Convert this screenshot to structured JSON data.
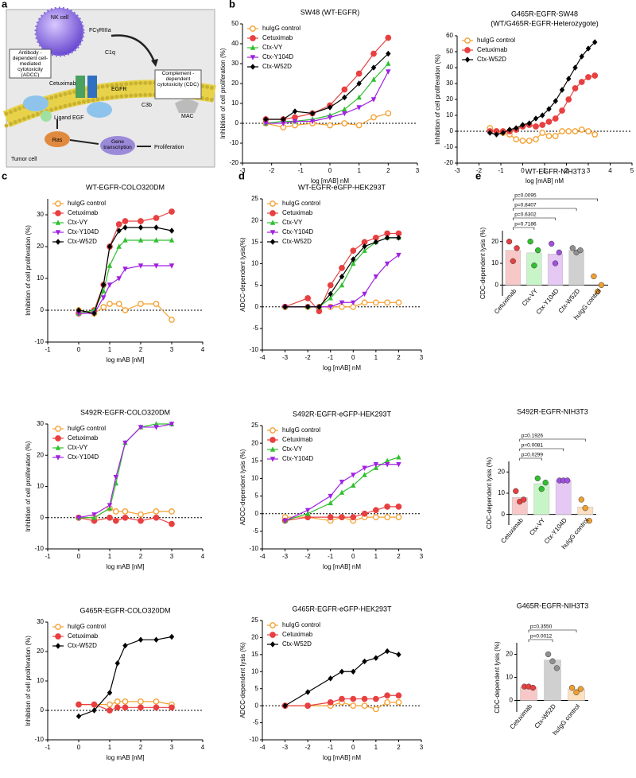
{
  "panel_labels": [
    "a",
    "b",
    "c",
    "d",
    "e"
  ],
  "diagram": {
    "nk_cell": "NK cell",
    "receptor": "FCγRIIIa",
    "c1q": "C1q",
    "adcc": "Antibody -dependent cell-mediated cytotoxicity (ADCC)",
    "cetuximab": "Cetuximab",
    "egfr": "EGFR",
    "cdc": "Complement -dependent cytotoxicity (CDC)",
    "ligand": "Ligand EGF",
    "c3b": "C3b",
    "mac": "MAC",
    "ras": "Ras",
    "gene": "Gene transcription",
    "proliferation": "Proliferation",
    "tumor": "Tumor cell"
  },
  "chart_data": [
    {
      "type": "line",
      "title": "SW48 (WT-EGFR)",
      "xlabel": "log [mAB] nM",
      "ylabel": "Inhibition of cell proliferation (%)",
      "xlim": [
        -3,
        3
      ],
      "xticks": [
        -3,
        -2,
        -1,
        0,
        1,
        2,
        3
      ],
      "ylim": [
        -20,
        50
      ],
      "yticks": [
        -20,
        -10,
        0,
        10,
        20,
        30,
        40,
        50
      ],
      "x": [
        -2.2,
        -1.6,
        -1.2,
        -0.6,
        0,
        0.5,
        1,
        1.5,
        2
      ],
      "series": [
        {
          "name": "huIgG control",
          "color": "#f5a030",
          "marker": "circle-open",
          "values": [
            0,
            -2,
            -1,
            0,
            -1,
            0,
            -1,
            3,
            5
          ]
        },
        {
          "name": "Cetuximab",
          "color": "#e84040",
          "marker": "circle",
          "values": [
            2,
            2,
            3,
            5,
            9,
            17,
            25,
            35,
            43
          ]
        },
        {
          "name": "Ctx-VY",
          "color": "#30c030",
          "marker": "triangle",
          "values": [
            0,
            1,
            1,
            2,
            4,
            7,
            13,
            22,
            30
          ]
        },
        {
          "name": "Ctx-Y104D",
          "color": "#a020e0",
          "marker": "triangle-down",
          "values": [
            0,
            0,
            1,
            1,
            3,
            5,
            8,
            12,
            26
          ]
        },
        {
          "name": "Ctx-W52D",
          "color": "#000000",
          "marker": "diamond",
          "values": [
            2,
            2,
            6,
            5,
            8,
            13,
            20,
            28,
            35
          ]
        }
      ]
    },
    {
      "type": "line",
      "title": "G465R-EGFR-SW48",
      "subtitle": "(WT/G465R-EGFR-Heterozygote)",
      "xlabel": "log [mAB] nM",
      "ylabel": "Inhibition of cell proliferation (%)",
      "xlim": [
        -3,
        5
      ],
      "xticks": [
        -3,
        -2,
        -1,
        0,
        1,
        2,
        3,
        4,
        5
      ],
      "ylim": [
        -20,
        60
      ],
      "yticks": [
        -20,
        -10,
        0,
        10,
        20,
        30,
        40,
        50,
        60
      ],
      "x": [
        -1.5,
        -1.2,
        -0.9,
        -0.6,
        -0.3,
        0,
        0.3,
        0.6,
        0.9,
        1.2,
        1.5,
        1.8,
        2.1,
        2.4,
        2.7,
        3.0,
        3.3
      ],
      "series": [
        {
          "name": "huIgG control",
          "color": "#f5a030",
          "marker": "circle-open",
          "values": [
            2,
            0,
            -1,
            -2,
            -5,
            -6,
            -6,
            -5,
            -1,
            -3,
            -3,
            0,
            0,
            0,
            1,
            0,
            -2
          ]
        },
        {
          "name": "Cetuximab",
          "color": "#e84040",
          "marker": "circle",
          "values": [
            0,
            0,
            0,
            0,
            1,
            3,
            4,
            3,
            4,
            6,
            8,
            13,
            20,
            27,
            31,
            34,
            35
          ]
        },
        {
          "name": "Ctx-W52D",
          "color": "#000000",
          "marker": "diamond",
          "values": [
            -1,
            -2,
            -1,
            1,
            2,
            4,
            5,
            8,
            10,
            14,
            19,
            26,
            33,
            40,
            47,
            52,
            56
          ]
        }
      ]
    },
    {
      "type": "line",
      "title": "WT-EGFR-COLO320DM",
      "xlabel": "log mAB [nM]",
      "ylabel": "Inhibition of cell proliferation (%)",
      "xlim": [
        -1,
        4
      ],
      "xticks": [
        -1,
        0,
        1,
        2,
        3,
        4
      ],
      "ylim": [
        -10,
        35
      ],
      "yticks": [
        -10,
        0,
        10,
        20,
        30
      ],
      "x": [
        0,
        0.5,
        0.8,
        1,
        1.3,
        1.5,
        2,
        2.5,
        3
      ],
      "series": [
        {
          "name": "huIgG control",
          "color": "#f5a030",
          "marker": "circle-open",
          "values": [
            0,
            -1,
            1,
            2,
            2,
            0,
            2,
            2,
            -3
          ]
        },
        {
          "name": "Cetuximab",
          "color": "#e84040",
          "marker": "circle",
          "values": [
            -1,
            0,
            8,
            20,
            27,
            28,
            28,
            29,
            31
          ]
        },
        {
          "name": "Ctx-VY",
          "color": "#30c030",
          "marker": "triangle",
          "values": [
            -1,
            0,
            6,
            14,
            20,
            22,
            22,
            22,
            22
          ]
        },
        {
          "name": "Ctx-Y104D",
          "color": "#a020e0",
          "marker": "triangle-down",
          "values": [
            -1,
            -1,
            4,
            8,
            10,
            13,
            14,
            14,
            14
          ]
        },
        {
          "name": "Ctx-W52D",
          "color": "#000000",
          "marker": "diamond",
          "values": [
            0,
            -1,
            8,
            20,
            25,
            26,
            26,
            26,
            25
          ]
        }
      ]
    },
    {
      "type": "line",
      "title": "WT-EGFR-eGFP-HEK293T",
      "xlabel": "log [mAB] nM",
      "ylabel": "ADCC-dependent lysis(%)",
      "xlim": [
        -4,
        3
      ],
      "xticks": [
        -4,
        -3,
        -2,
        -1,
        0,
        1,
        2,
        3
      ],
      "ylim": [
        -10,
        25
      ],
      "yticks": [
        -10,
        -5,
        0,
        5,
        10,
        15,
        20,
        25
      ],
      "x": [
        -3,
        -2,
        -1.5,
        -1,
        -0.5,
        0,
        0.5,
        1,
        1.5,
        2
      ],
      "series": [
        {
          "name": "huIgG control",
          "color": "#f5a030",
          "marker": "circle-open",
          "values": [
            0,
            0,
            0,
            0,
            0,
            0,
            1,
            1,
            1,
            1
          ]
        },
        {
          "name": "Cetuximab",
          "color": "#e84040",
          "marker": "circle",
          "values": [
            0,
            2,
            -1,
            5,
            9,
            13,
            15,
            16,
            17,
            17
          ]
        },
        {
          "name": "Ctx-VY",
          "color": "#30c030",
          "marker": "triangle",
          "values": [
            0,
            0,
            0,
            2,
            5,
            10,
            13,
            15,
            16,
            16
          ]
        },
        {
          "name": "Ctx-Y104D",
          "color": "#a020e0",
          "marker": "triangle-down",
          "values": [
            0,
            0,
            0,
            0,
            1,
            1,
            3,
            7,
            10,
            12
          ]
        },
        {
          "name": "Ctx-W52D",
          "color": "#000000",
          "marker": "diamond",
          "values": [
            0,
            0,
            0,
            3,
            7,
            11,
            14,
            15,
            16,
            16
          ]
        }
      ]
    },
    {
      "type": "bar",
      "title": "WT-EGFR-NIH3T3",
      "ylabel": "CDC-dependent lysis (%)",
      "ylim": [
        -5,
        25
      ],
      "yticks": [
        0,
        10,
        20
      ],
      "categories": [
        "Cetuximab",
        "Ctx-VY",
        "Ctx-Y104D",
        "Ctx-W52D",
        "huIgG control"
      ],
      "values": [
        16,
        14.8,
        14.3,
        16,
        0
      ],
      "colors": [
        "#f8c8c8",
        "#c8f5c8",
        "#e6c8f5",
        "#d0d0d0",
        "#fde0c0"
      ],
      "dot_colors": [
        "#e84040",
        "#30c030",
        "#a050e0",
        "#909090",
        "#f0a030"
      ],
      "points": [
        [
          20,
          11,
          17
        ],
        [
          20,
          9,
          16
        ],
        [
          19,
          10,
          15
        ],
        [
          17,
          15,
          16
        ],
        [
          4,
          -3,
          0
        ]
      ],
      "annotations": [
        "p=0.7186",
        "p=0.6302",
        "p=0.8407",
        "p=0.0095"
      ]
    },
    {
      "type": "line",
      "title": "S492R-EGFR-COLO320DM",
      "xlabel": "log mAB [nM]",
      "ylabel": "Inhibition of cell proliferation (%)",
      "xlim": [
        -1,
        4
      ],
      "xticks": [
        -1,
        0,
        1,
        2,
        3,
        4
      ],
      "ylim": [
        -10,
        30
      ],
      "yticks": [
        -10,
        0,
        10,
        20,
        30
      ],
      "x": [
        0,
        0.5,
        1,
        1.2,
        1.5,
        2,
        2.5,
        3
      ],
      "series": [
        {
          "name": "huIgG control",
          "color": "#f5a030",
          "marker": "circle-open",
          "values": [
            0,
            0,
            3,
            2,
            2,
            1,
            2,
            2
          ]
        },
        {
          "name": "Cetuximab",
          "color": "#e84040",
          "marker": "circle",
          "values": [
            0,
            -1,
            0,
            -1,
            0,
            -1,
            0,
            -2
          ]
        },
        {
          "name": "Ctx-VY",
          "color": "#30c030",
          "marker": "triangle",
          "values": [
            0,
            0,
            3,
            11,
            24,
            29,
            30,
            30
          ]
        },
        {
          "name": "Ctx-Y104D",
          "color": "#a020e0",
          "marker": "triangle-down",
          "values": [
            0,
            1,
            4,
            13,
            24,
            29,
            29,
            30
          ]
        }
      ]
    },
    {
      "type": "line",
      "title": "S492R-EGFR-eGFP-HEK293T",
      "xlabel": "log [mAB] nM",
      "ylabel": "ADCC-dependent lysis (%)",
      "xlim": [
        -4,
        3
      ],
      "xticks": [
        -4,
        -3,
        -2,
        -1,
        0,
        1,
        2,
        3
      ],
      "ylim": [
        -10,
        25
      ],
      "yticks": [
        -10,
        -5,
        0,
        5,
        10,
        15,
        20,
        25
      ],
      "x": [
        -3,
        -2,
        -1,
        -0.5,
        0,
        0.5,
        1,
        1.5,
        2
      ],
      "series": [
        {
          "name": "huIgG control",
          "color": "#f5a030",
          "marker": "circle-open",
          "values": [
            -1,
            -1,
            -2,
            -1,
            -2,
            -1,
            -1,
            -1,
            -1
          ]
        },
        {
          "name": "Cetuximab",
          "color": "#e84040",
          "marker": "circle",
          "values": [
            -2,
            -1,
            -1,
            -1,
            -1,
            0,
            1,
            2,
            2
          ]
        },
        {
          "name": "Ctx-VY",
          "color": "#30c030",
          "marker": "triangle",
          "values": [
            -2,
            0,
            3,
            6,
            8,
            11,
            13,
            15,
            16
          ]
        },
        {
          "name": "Ctx-Y104D",
          "color": "#a020e0",
          "marker": "triangle-down",
          "values": [
            -2,
            1,
            5,
            9,
            11,
            13,
            14,
            14,
            14
          ]
        }
      ]
    },
    {
      "type": "bar",
      "title": "S492R-EGFR-NIH3T3",
      "ylabel": "CDC-dependent lysis (%)",
      "ylim": [
        -5,
        25
      ],
      "yticks": [
        0,
        10,
        20
      ],
      "categories": [
        "Cetuximab",
        "Ctx-VY",
        "Ctx-Y104D",
        "huIgG control"
      ],
      "values": [
        8,
        14.5,
        16,
        3.5
      ],
      "colors": [
        "#f8c8c8",
        "#c8f5c8",
        "#e6c8f5",
        "#fde0c0"
      ],
      "dot_colors": [
        "#e84040",
        "#30c030",
        "#a050e0",
        "#f0a030"
      ],
      "points": [
        [
          11,
          6,
          7
        ],
        [
          17,
          12,
          15
        ],
        [
          16,
          16,
          16
        ],
        [
          7,
          3,
          -3
        ]
      ],
      "annotations": [
        "p=0.0299",
        "p=0.0081",
        "p=0.1926"
      ]
    },
    {
      "type": "line",
      "title": "G465R-EGFR-COLO320DM",
      "xlabel": "log mAB [nM]",
      "ylabel": "Inhibition of cell proliferation (%)",
      "xlim": [
        -1,
        4
      ],
      "xticks": [
        -1,
        0,
        1,
        2,
        3,
        4
      ],
      "ylim": [
        -10,
        30
      ],
      "yticks": [
        -10,
        0,
        10,
        20,
        30
      ],
      "x": [
        0,
        0.5,
        1,
        1.25,
        1.5,
        2,
        2.5,
        3
      ],
      "series": [
        {
          "name": "huIgG control",
          "color": "#f5a030",
          "marker": "circle-open",
          "values": [
            2,
            2,
            2,
            3,
            3,
            3,
            3,
            2
          ]
        },
        {
          "name": "Cetuximab",
          "color": "#e84040",
          "marker": "circle",
          "values": [
            2,
            2,
            0,
            1,
            1,
            1,
            1,
            1
          ]
        },
        {
          "name": "Ctx-W52D",
          "color": "#000000",
          "marker": "diamond",
          "values": [
            -2,
            0,
            6,
            16,
            22,
            24,
            24,
            25
          ]
        }
      ]
    },
    {
      "type": "line",
      "title": "G465R-EGFR-eGFP-HEK293T",
      "xlabel": "log [mAB] nM",
      "ylabel": "ADCC-dependent lysis (%)",
      "xlim": [
        -4,
        3
      ],
      "xticks": [
        -4,
        -3,
        -2,
        -1,
        0,
        1,
        2,
        3
      ],
      "ylim": [
        -10,
        25
      ],
      "yticks": [
        -10,
        -5,
        0,
        5,
        10,
        15,
        20,
        25
      ],
      "x": [
        -3,
        -2,
        -1,
        -0.5,
        0,
        0.5,
        1,
        1.5,
        2
      ],
      "series": [
        {
          "name": "huIgG control",
          "color": "#f5a030",
          "marker": "circle-open",
          "values": [
            0,
            0,
            0,
            1,
            0,
            0,
            -1,
            1,
            1
          ]
        },
        {
          "name": "Cetuximab",
          "color": "#e84040",
          "marker": "circle",
          "values": [
            0,
            0,
            1,
            2,
            2,
            2,
            2,
            3,
            3
          ]
        },
        {
          "name": "Ctx-W52D",
          "color": "#000000",
          "marker": "diamond",
          "values": [
            0,
            4,
            8,
            10,
            10,
            13,
            14,
            16,
            15
          ]
        }
      ]
    },
    {
      "type": "bar",
      "title": "G465R-EGFR-NIH3T3",
      "ylabel": "CDC-dependent lysis (%)",
      "ylim": [
        -5,
        25
      ],
      "yticks": [
        0,
        10,
        20
      ],
      "categories": [
        "Cetuximab",
        "Ctx-W52D",
        "huIgG control"
      ],
      "values": [
        5.8,
        17.5,
        5
      ],
      "colors": [
        "#f8c8c8",
        "#d0d0d0",
        "#fde0c0"
      ],
      "dot_colors": [
        "#e84040",
        "#909090",
        "#f0a030"
      ],
      "points": [
        [
          6,
          6,
          5.5
        ],
        [
          20,
          17,
          14
        ],
        [
          5.5,
          3.5,
          5
        ]
      ],
      "annotations": [
        "p=0.0012",
        "p=0.3550"
      ]
    }
  ]
}
